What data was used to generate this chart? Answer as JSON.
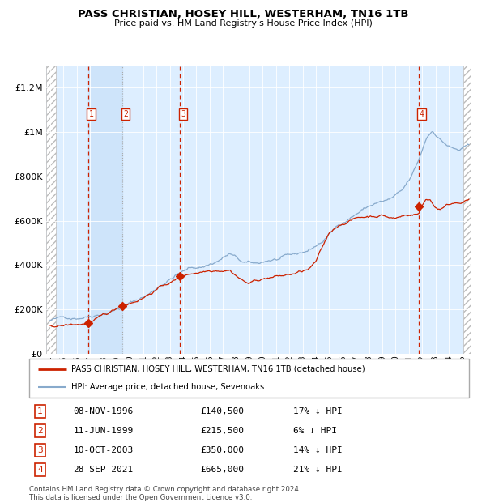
{
  "title": "PASS CHRISTIAN, HOSEY HILL, WESTERHAM, TN16 1TB",
  "subtitle": "Price paid vs. HM Land Registry's House Price Index (HPI)",
  "legend_line1": "PASS CHRISTIAN, HOSEY HILL, WESTERHAM, TN16 1TB (detached house)",
  "legend_line2": "HPI: Average price, detached house, Sevenoaks",
  "footer1": "Contains HM Land Registry data © Crown copyright and database right 2024.",
  "footer2": "This data is licensed under the Open Government Licence v3.0.",
  "hpi_color": "#88aacc",
  "price_color": "#cc2200",
  "bg_plot": "#ddeeff",
  "grid_color": "#ffffff",
  "ylim": [
    0,
    1300000
  ],
  "xlim_start": 1993.7,
  "xlim_end": 2025.7,
  "hatch_left_end": 1994.42,
  "hatch_right_start": 2025.08,
  "sale_points": [
    {
      "year": 1996.856,
      "price": 140500,
      "label": "1"
    },
    {
      "year": 1999.44,
      "price": 215500,
      "label": "2"
    },
    {
      "year": 2003.775,
      "price": 350000,
      "label": "3"
    },
    {
      "year": 2021.74,
      "price": 665000,
      "label": "4"
    }
  ],
  "red_vlines": [
    1996.856,
    2003.775,
    2021.74
  ],
  "gray_vlines": [
    1999.44
  ],
  "shade_x0": 1996.856,
  "shade_x1": 1999.44,
  "yticks": [
    0,
    200000,
    400000,
    600000,
    800000,
    1000000,
    1200000
  ],
  "ytick_labels": [
    "£0",
    "£200K",
    "£400K",
    "£600K",
    "£800K",
    "£1M",
    "£1.2M"
  ],
  "table_rows": [
    {
      "num": "1",
      "date": "08-NOV-1996",
      "price": "£140,500",
      "pct": "17% ↓ HPI"
    },
    {
      "num": "2",
      "date": "11-JUN-1999",
      "price": "£215,500",
      "pct": "6% ↓ HPI"
    },
    {
      "num": "3",
      "date": "10-OCT-2003",
      "price": "£350,000",
      "pct": "14% ↓ HPI"
    },
    {
      "num": "4",
      "date": "28-SEP-2021",
      "price": "£665,000",
      "pct": "21% ↓ HPI"
    }
  ]
}
